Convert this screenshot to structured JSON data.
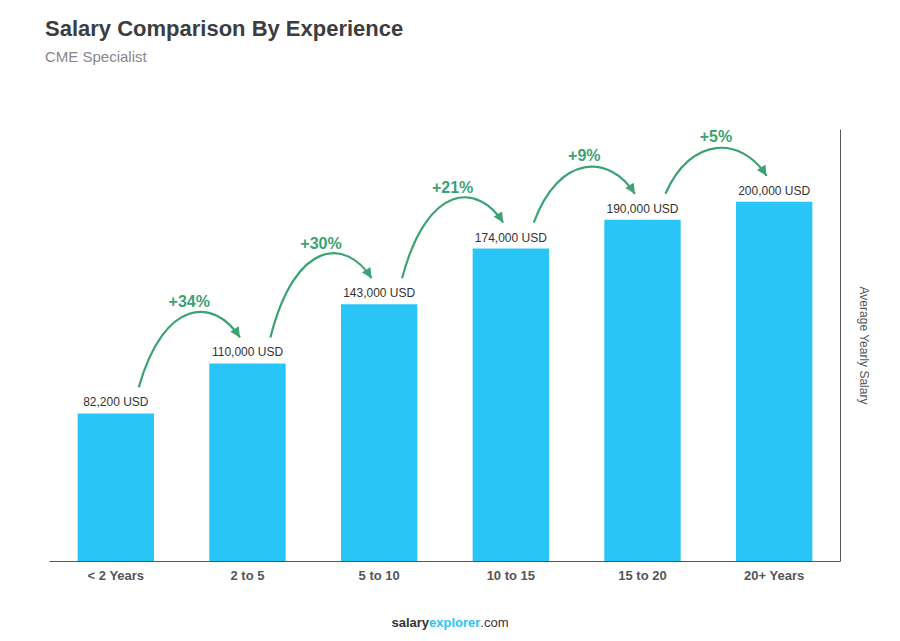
{
  "chart_data": {
    "type": "bar",
    "title": "Salary Comparison By Experience",
    "subtitle": "CME Specialist",
    "categories": [
      "< 2 Years",
      "2 to 5",
      "5 to 10",
      "10 to 15",
      "15 to 20",
      "20+ Years"
    ],
    "values": [
      82200,
      110000,
      143000,
      174000,
      190000,
      200000
    ],
    "value_labels": [
      "82,200 USD",
      "110,000 USD",
      "143,000 USD",
      "174,000 USD",
      "190,000 USD",
      "200,000 USD"
    ],
    "data_labels": true,
    "annotations": [
      "+34%",
      "+30%",
      "+21%",
      "+9%",
      "+5%"
    ],
    "ylabel": "Average Yearly Salary",
    "footer": [
      "salary",
      "explorer",
      ".com"
    ],
    "color": "#29c5f6",
    "ylim": [
      0,
      240000
    ],
    "yticks": [],
    "grid": false,
    "tick_labels": "x"
  }
}
